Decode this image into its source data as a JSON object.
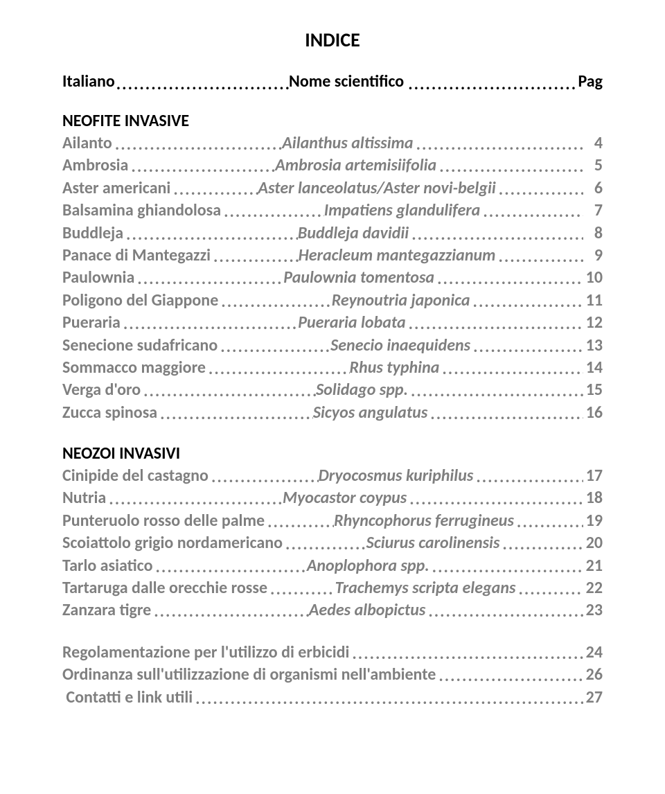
{
  "title": "INDICE",
  "header": {
    "left": "Italiano",
    "mid": "Nome scientifico",
    "right": "Pag"
  },
  "sections": [
    {
      "heading": "NEOFITE INVASIVE",
      "entries": [
        {
          "term": "Ailanto",
          "sci": "Ailanthus altissima",
          "pg": "4"
        },
        {
          "term": "Ambrosia",
          "sci": "Ambrosia artemisiifolia",
          "pg": "5"
        },
        {
          "term": "Aster americani",
          "sci": "Aster lanceolatus/Aster novi-belgii",
          "pg": "6"
        },
        {
          "term": "Balsamina ghiandolosa",
          "sci": "Impatiens glandulifera",
          "pg": "7"
        },
        {
          "term": "Buddleja",
          "sci": "Buddleja davidii",
          "pg": "8"
        },
        {
          "term": "Panace di Mantegazzi",
          "sci": "Heracleum mantegazzianum",
          "pg": "9"
        },
        {
          "term": "Paulownia",
          "sci": "Paulownia tomentosa",
          "pg": "10"
        },
        {
          "term": "Poligono del Giappone",
          "sci": "Reynoutria japonica",
          "pg": "11"
        },
        {
          "term": "Pueraria",
          "sci": "Pueraria lobata",
          "pg": "12"
        },
        {
          "term": "Senecione sudafricano",
          "sci": "Senecio inaequidens",
          "pg": "13"
        },
        {
          "term": "Sommacco maggiore",
          "sci": "Rhus typhina",
          "pg": "14"
        },
        {
          "term": "Verga d'oro",
          "sci": "Solidago spp.",
          "pg": "15"
        },
        {
          "term": "Zucca spinosa",
          "sci": "Sicyos angulatus",
          "pg": "16"
        }
      ]
    },
    {
      "heading": "NEOZOI INVASIVI",
      "entries": [
        {
          "term": "Cinipide del castagno",
          "sci": "Dryocosmus kuriphilus",
          "pg": "17"
        },
        {
          "term": "Nutria",
          "sci": "Myocastor coypus",
          "pg": "18"
        },
        {
          "term": "Punteruolo rosso delle palme",
          "sci": "Rhyncophorus ferrugineus",
          "pg": "19"
        },
        {
          "term": "Scoiattolo grigio nordamericano",
          "sci": "Sciurus carolinensis",
          "pg": "20"
        },
        {
          "term": "Tarlo asiatico",
          "sci": "Anoplophora spp.",
          "pg": "21"
        },
        {
          "term": "Tartaruga dalle orecchie rosse",
          "sci": "Trachemys scripta elegans",
          "pg": "22"
        },
        {
          "term": "Zanzara tigre",
          "sci": "Aedes albopictus",
          "pg": "23"
        }
      ]
    },
    {
      "heading": null,
      "entries": [
        {
          "term": "Regolamentazione per l'utilizzo di erbicidi",
          "sci": null,
          "pg": "24"
        },
        {
          "term": "Ordinanza sull'utilizzazione di organismi nell'ambiente",
          "sci": null,
          "pg": "26"
        },
        {
          "term": "Contatti e link utili",
          "sci": null,
          "pg": "27",
          "leadspace": true
        }
      ]
    }
  ],
  "colors": {
    "title": "#000000",
    "heading": "#000000",
    "body": "#7f7f7f",
    "background": "#ffffff"
  },
  "typography": {
    "title_fontsize": 28,
    "body_fontsize": 24,
    "font_family": "Calibri"
  }
}
